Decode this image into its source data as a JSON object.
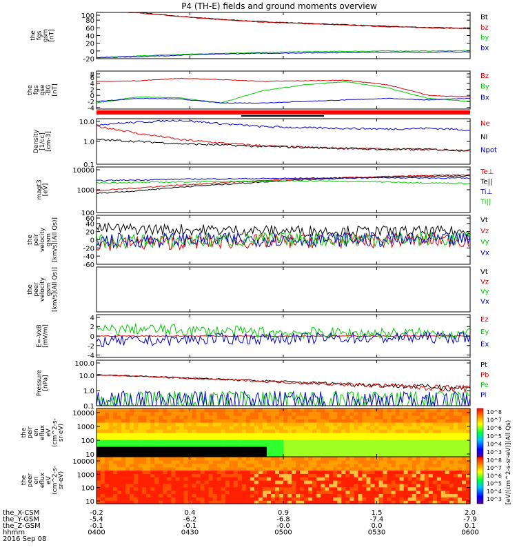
{
  "title": "P4 (TH-E) fields and ground moments overview",
  "footer": {
    "row_labels": [
      "the_X-CSM",
      "the_Y-GSM",
      "the_Z-GSM",
      "hhmm",
      "2016 Sep 08"
    ],
    "x_ticks": [
      "-0.2",
      "0.4",
      "0.9",
      "1.5",
      "2.0"
    ],
    "y_ticks": [
      "-5.4",
      "-6.2",
      "-6.8",
      "-7.4",
      "-7.9"
    ],
    "z_ticks": [
      "-0.1",
      "-0.1",
      "-0.0",
      "0.0",
      "0.1"
    ],
    "time_ticks": [
      "0400",
      "0430",
      "0500",
      "0530",
      "0600"
    ]
  },
  "chart_data": [
    {
      "type": "line",
      "panel": "fgs_gsm",
      "ylabel": [
        "the",
        "fgs",
        "gsm",
        "[nT]"
      ],
      "yticks": [
        "100",
        "80",
        "60",
        "40",
        "20",
        "0",
        "-20"
      ],
      "ylim": [
        -20,
        100
      ],
      "series": [
        {
          "name": "Bt",
          "color": "#000000",
          "values": [
            105,
            100,
            90,
            82,
            76,
            72,
            68,
            64,
            61,
            59
          ]
        },
        {
          "name": "bz",
          "color": "#dd0000",
          "values": [
            104,
            99,
            89,
            81,
            75,
            71,
            67,
            63,
            60,
            58
          ]
        },
        {
          "name": "by",
          "color": "#00cc00",
          "values": [
            -18,
            -13,
            -9,
            -6,
            -4,
            -2,
            -1,
            0,
            0,
            1
          ]
        },
        {
          "name": "bx",
          "color": "#0000cc",
          "values": [
            -17,
            -15,
            -11,
            -8,
            -6,
            -5,
            -4,
            -3,
            -3,
            -2
          ]
        }
      ]
    },
    {
      "type": "line",
      "panel": "fgs_gse_dc",
      "ylabel": [
        "the",
        "fgs",
        "gse",
        "-BG",
        "[nT]"
      ],
      "yticks": [
        "8",
        "6",
        "4",
        "2",
        "0",
        "-2",
        "-4"
      ],
      "ylim": [
        -4.5,
        8
      ],
      "series": [
        {
          "name": "Bz",
          "color": "#dd0000",
          "values": [
            4.5,
            4.8,
            5.6,
            5.2,
            4.6,
            4.8,
            5.0,
            3.5,
            0.0,
            -0.5
          ]
        },
        {
          "name": "By",
          "color": "#00cc00",
          "values": [
            -2.5,
            -0.5,
            -0.8,
            -2.5,
            1.5,
            3.5,
            4.5,
            2.5,
            -1.0,
            -2.0
          ]
        },
        {
          "name": "Bx",
          "color": "#0000cc",
          "values": [
            -2.0,
            -1.0,
            -1.2,
            -2.5,
            -2.5,
            -2.0,
            -1.5,
            -1.0,
            -1.5,
            -1.0
          ]
        }
      ]
    },
    {
      "type": "line",
      "panel": "density",
      "scale": "log",
      "ylabel": [
        "Density",
        "[1/cc]",
        "[cm-3]"
      ],
      "yticks": [
        "10.0",
        "1.0",
        "0.1"
      ],
      "ylim": [
        0.1,
        10
      ],
      "series": [
        {
          "name": "Ne",
          "color": "#dd0000",
          "values": [
            4.5,
            2.2,
            1.2,
            0.85,
            0.65,
            0.55,
            0.5,
            0.45,
            0.45,
            0.4
          ]
        },
        {
          "name": "Ni",
          "color": "#000000",
          "values": [
            1.2,
            1.0,
            0.8,
            0.7,
            0.6,
            0.55,
            0.5,
            0.45,
            0.45,
            0.4
          ]
        },
        {
          "name": "Npot",
          "color": "#0000cc",
          "values": [
            5.5,
            7.0,
            8.5,
            6.0,
            4.5,
            4.0,
            3.8,
            3.5,
            3.8,
            3.2
          ]
        }
      ]
    },
    {
      "type": "line",
      "panel": "temperature",
      "scale": "log",
      "ylabel": [
        "magt3",
        "[eV]"
      ],
      "yticks": [
        "10000",
        "1000",
        "100"
      ],
      "ylim": [
        100,
        10000
      ],
      "series": [
        {
          "name": "Te⊥",
          "color": "#dd0000",
          "values": [
            900,
            1200,
            1600,
            2000,
            2500,
            3000,
            3400,
            3800,
            4200,
            4500
          ]
        },
        {
          "name": "Te||",
          "color": "#000000",
          "values": [
            700,
            900,
            1300,
            1700,
            2200,
            2800,
            3200,
            3600,
            3900,
            4000
          ]
        },
        {
          "name": "Ti⊥",
          "color": "#0000cc",
          "values": [
            2500,
            2700,
            2900,
            3000,
            3100,
            3200,
            3300,
            3400,
            3300,
            3200
          ]
        },
        {
          "name": "Ti||",
          "color": "#00cc00",
          "values": [
            2000,
            2100,
            2200,
            2300,
            2400,
            2500,
            2300,
            2200,
            2000,
            1900
          ]
        }
      ]
    },
    {
      "type": "line",
      "panel": "peir_velocity",
      "ylabel": [
        "the",
        "peir",
        "velocity",
        "gsm",
        "[km/s](All Qs)]"
      ],
      "yticks": [
        "60",
        "40",
        "20",
        "0",
        "-20",
        "-40",
        "-60"
      ],
      "ylim": [
        -60,
        60
      ],
      "series": [
        {
          "name": "Vt",
          "color": "#000000",
          "values": [
            28,
            26,
            25,
            24,
            22,
            22,
            21,
            20,
            20,
            19
          ]
        },
        {
          "name": "Vz",
          "color": "#dd0000",
          "values": [
            -10,
            -8,
            -6,
            -5,
            -4,
            -3,
            -2,
            -2,
            -1,
            -1
          ]
        },
        {
          "name": "Vy",
          "color": "#00cc00",
          "values": [
            -5,
            -3,
            -2,
            -1,
            0,
            1,
            1,
            2,
            2,
            2
          ]
        },
        {
          "name": "Vx",
          "color": "#0000cc",
          "values": [
            -2,
            -1,
            0,
            0,
            1,
            1,
            1,
            0,
            0,
            0
          ]
        }
      ]
    },
    {
      "type": "line",
      "panel": "peer_velocity",
      "ylabel": [
        "the",
        "peer",
        "velocity",
        "gsm",
        "[km/s](All Qs)]"
      ],
      "yticks": [],
      "ylim": [
        -60,
        60
      ],
      "series": [
        {
          "name": "Vt",
          "color": "#000000",
          "values": []
        },
        {
          "name": "Vz",
          "color": "#dd0000",
          "values": []
        },
        {
          "name": "Vy",
          "color": "#00cc00",
          "values": []
        },
        {
          "name": "Vx",
          "color": "#0000cc",
          "values": []
        }
      ]
    },
    {
      "type": "line",
      "panel": "e_field",
      "ylabel": [
        "E=-VxB",
        "[mV/m]"
      ],
      "yticks": [
        "4",
        "2",
        "0",
        "-2",
        "-4"
      ],
      "ylim": [
        -4.5,
        4.5
      ],
      "series": [
        {
          "name": "Ez",
          "color": "#dd0000",
          "values": [
            0,
            0,
            0,
            0,
            0,
            0,
            0,
            0,
            0,
            0
          ]
        },
        {
          "name": "Ey",
          "color": "#00cc00",
          "values": [
            1.2,
            1.5,
            1.2,
            1.0,
            0.8,
            0.7,
            0.6,
            0.6,
            0.5,
            0.5
          ]
        },
        {
          "name": "Ex",
          "color": "#0000cc",
          "values": [
            -1.2,
            -1.0,
            -0.8,
            -0.6,
            -0.5,
            -0.5,
            -0.4,
            -0.4,
            -0.3,
            -0.3
          ]
        }
      ]
    },
    {
      "type": "line",
      "panel": "pressure",
      "scale": "log",
      "ylabel": [
        "Pressure",
        "[nPa]"
      ],
      "yticks": [
        "100.0",
        "10.0",
        "1.0",
        "0.1"
      ],
      "ylim": [
        0.1,
        100
      ],
      "series": [
        {
          "name": "Pt",
          "color": "#000000",
          "values": [
            11,
            9,
            7,
            5.5,
            4.3,
            3.4,
            2.7,
            2.2,
            1.8,
            1.5
          ]
        },
        {
          "name": "Pb",
          "color": "#dd0000",
          "values": [
            10.5,
            8.6,
            6.7,
            5.3,
            4.1,
            3.2,
            2.6,
            2.1,
            1.7,
            1.4
          ]
        },
        {
          "name": "Pe",
          "color": "#00cc00",
          "values": [
            0.28,
            0.25,
            0.2,
            0.18,
            0.16,
            0.15,
            0.15,
            0.16,
            0.17,
            0.2
          ]
        },
        {
          "name": "Pi",
          "color": "#0000cc",
          "values": [
            0.22,
            0.2,
            0.18,
            0.16,
            0.15,
            0.14,
            0.14,
            0.13,
            0.13,
            0.12
          ]
        }
      ]
    },
    {
      "type": "heatmap",
      "panel": "peir_eflux",
      "scale": "log",
      "ylabel": [
        "the",
        "peir",
        "en",
        "eflux",
        "eV",
        "(cm^2-s-",
        "sr-eV)"
      ],
      "yticks": [
        "10000",
        "1000",
        "100",
        "10"
      ],
      "ylim": [
        10,
        30000
      ],
      "colorbar_ticks": [
        "10^8",
        "10^7",
        "10^6",
        "10^5",
        "10^4",
        "10^3"
      ]
    },
    {
      "type": "heatmap",
      "panel": "peer_eflux",
      "scale": "log",
      "ylabel": [
        "the",
        "peer",
        "en",
        "eflux",
        "eV",
        "(cm^2-s-",
        "sr-eV)"
      ],
      "yticks": [
        "10000",
        "1000",
        "100",
        "10"
      ],
      "ylim": [
        10,
        30000
      ],
      "colorbar_ticks": [
        "10^8",
        "10^7",
        "10^6",
        "10^5",
        "10^4",
        "10^3"
      ],
      "colorbar_label": "[eV/(cm^2-s-sr-eV)](All Qs)"
    }
  ]
}
